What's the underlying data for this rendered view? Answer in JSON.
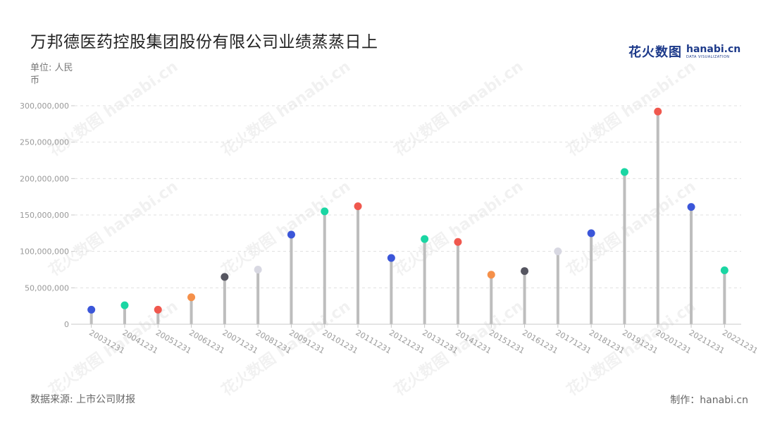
{
  "header": {
    "title": "万邦德医药控股集团股份有限公司业绩蒸蒸日上",
    "unit_label": "单位: 人民币"
  },
  "logo": {
    "brand": "花火数图",
    "site": "hanabi.cn",
    "tagline": "DATA VISUALIZATION"
  },
  "footer": {
    "source": "数据来源: 上市公司财报",
    "maker": "制作：hanabi.cn"
  },
  "watermark": {
    "text": "花火数图 hanabi.cn"
  },
  "colors": {
    "stem": "#bdbdbd",
    "grid": "#e0e0e0",
    "axis": "#c8c8c8",
    "tick_text": "#999999",
    "blue": "#3b56d9",
    "green": "#1ad6a3",
    "red": "#f0584e",
    "orange": "#f5904a",
    "dark": "#555560",
    "light": "#d8d8e2"
  },
  "chart_data": {
    "type": "lollipop",
    "title": "万邦德医药控股集团股份有限公司业绩蒸蒸日上",
    "ylabel": "单位: 人民币",
    "ylim": [
      0,
      300000000
    ],
    "yticks": [
      0,
      50000000,
      100000000,
      150000000,
      200000000,
      250000000,
      300000000
    ],
    "ytick_labels": [
      "0",
      "50,000,000",
      "100,000,000",
      "150,000,000",
      "200,000,000",
      "250,000,000",
      "300,000,000"
    ],
    "grid": true,
    "categories": [
      "20031231",
      "20041231",
      "20051231",
      "20061231",
      "20071231",
      "20081231",
      "20091231",
      "20101231",
      "20111231",
      "20121231",
      "20131231",
      "20141231",
      "20151231",
      "20161231",
      "20171231",
      "20181231",
      "20191231",
      "20201231",
      "20211231",
      "20221231"
    ],
    "values": [
      20000000,
      26000000,
      20000000,
      37000000,
      65000000,
      75000000,
      123000000,
      155000000,
      162000000,
      91000000,
      117000000,
      113000000,
      68000000,
      73000000,
      100000000,
      125000000,
      209000000,
      292000000,
      161000000,
      74000000
    ],
    "point_colors": [
      "blue",
      "green",
      "red",
      "orange",
      "dark",
      "light",
      "blue",
      "green",
      "red",
      "blue",
      "green",
      "red",
      "orange",
      "dark",
      "light",
      "blue",
      "green",
      "red",
      "blue",
      "green"
    ]
  }
}
